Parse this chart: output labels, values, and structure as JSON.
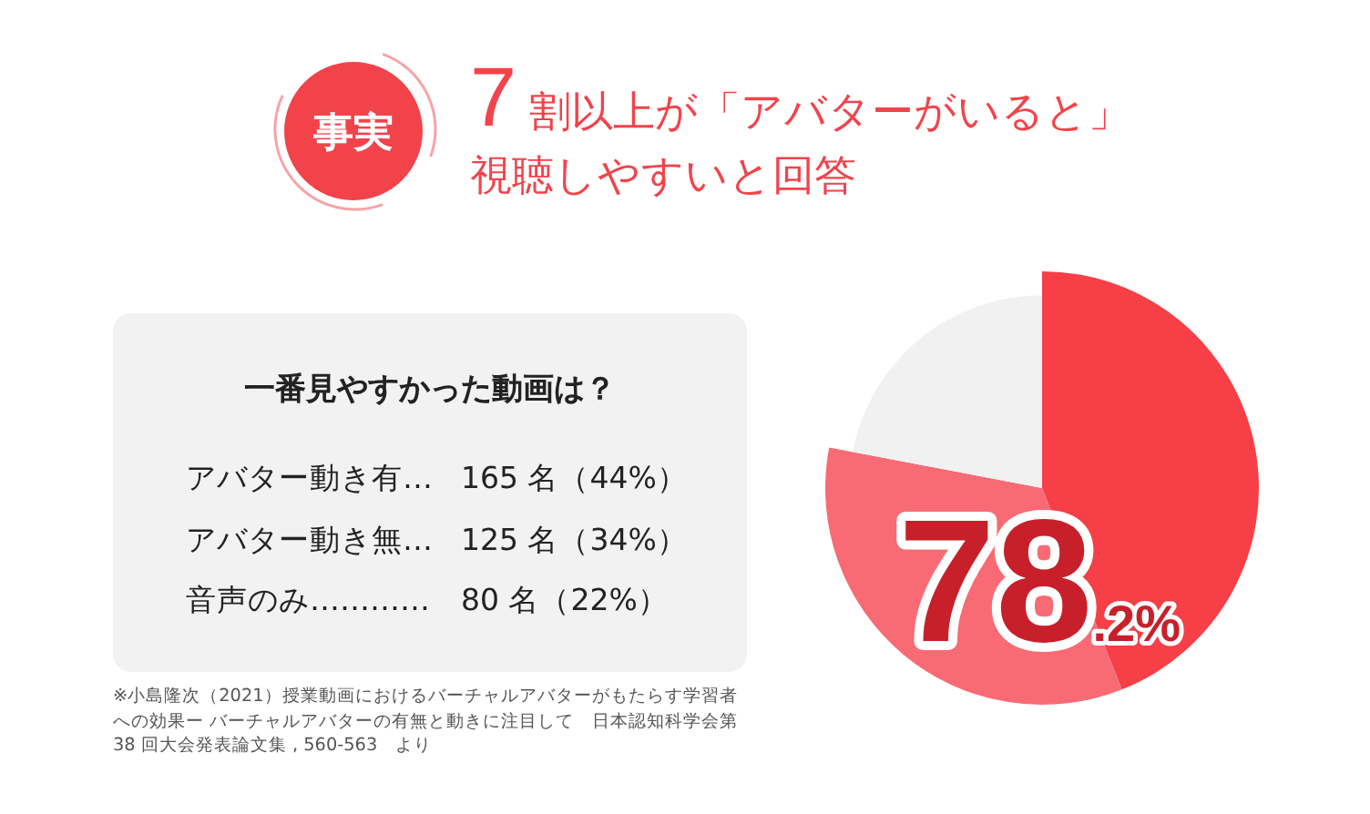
{
  "chart_data": [
    {
      "type": "other",
      "title": "一番見やすかった動画は？",
      "annotations": [
        "アバター動き有…",
        "165 名（44%）",
        "アバター動き無…",
        "125 名（34%）",
        "音声のみ…………",
        "80 名（22%）"
      ]
    },
    {
      "type": "pie",
      "title": "7割以上が「アバターがいると」視聴しやすいと回答",
      "categories": [
        null,
        null,
        null
      ],
      "values": [
        44,
        34,
        22
      ],
      "colors": [
        "#f63f46",
        "#f86b74",
        "#f1f1f1"
      ],
      "annotations": [
        "事実",
        "78.2%",
        "※小島隆次（2021）授業動画におけるバーチャルアバターがもたらす学習者への効果ー バーチャルアバターの有無と動きに注目して　日本認知科学会第38 回大会発表論文集 , 560-563　より"
      ]
    }
  ]
}
